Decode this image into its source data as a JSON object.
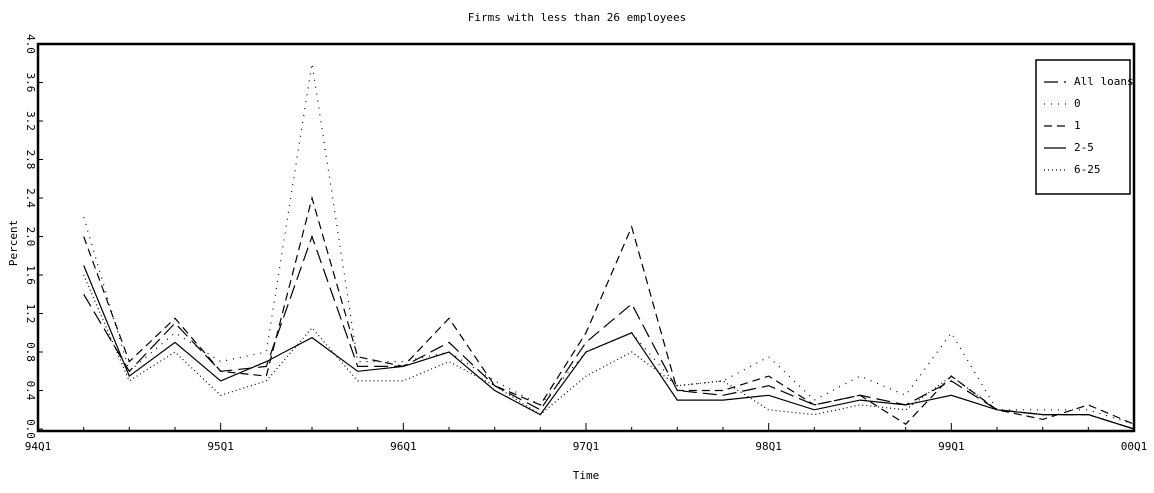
{
  "chart_data": {
    "type": "line",
    "title": "Firms with less than 26 employees",
    "x_label": "Time",
    "y_label": "Percent",
    "categories": [
      "94Q1",
      null,
      null,
      null,
      "95Q1",
      null,
      null,
      null,
      "96Q1",
      null,
      null,
      null,
      "97Q1",
      null,
      null,
      null,
      "98Q1",
      null,
      null,
      null,
      "99Q1",
      null,
      null,
      null,
      "00Q1"
    ],
    "ylim": [
      0,
      4
    ],
    "yticks": [
      {
        "value": 0,
        "label": "0.0"
      },
      0.4,
      0.8,
      1.2,
      1.6,
      {
        "value": 2,
        "label": "2.0"
      },
      2.4,
      2.8,
      3.2,
      3.6,
      {
        "value": 4,
        "label": "4.0"
      }
    ],
    "legend": "top-right",
    "series": [
      {
        "name": "All loans",
        "color": "#000000",
        "dash": "14,6",
        "values": [
          null,
          1.4,
          0.6,
          1.1,
          0.6,
          0.65,
          2.0,
          0.65,
          0.65,
          0.9,
          0.45,
          0.2,
          0.9,
          1.3,
          0.4,
          0.35,
          0.45,
          0.25,
          0.35,
          0.25,
          0.5,
          0.2,
          0.15,
          0.15,
          0.0
        ]
      },
      {
        "name": "0",
        "color": "#000000",
        "dash": "1,6",
        "values": [
          null,
          2.2,
          0.6,
          1.0,
          0.7,
          0.8,
          3.8,
          0.7,
          0.7,
          0.8,
          0.5,
          0.25,
          0.8,
          1.0,
          0.45,
          0.5,
          0.75,
          0.3,
          0.55,
          0.35,
          1.0,
          0.2,
          0.2,
          0.2,
          0.05
        ]
      },
      {
        "name": "1",
        "color": "#000000",
        "dash": "8,5",
        "values": [
          null,
          2.0,
          0.7,
          1.15,
          0.6,
          0.55,
          2.4,
          0.75,
          0.65,
          1.15,
          0.45,
          0.25,
          1.0,
          2.1,
          0.4,
          0.4,
          0.55,
          0.25,
          0.35,
          0.05,
          0.55,
          0.2,
          0.1,
          0.25,
          0.05
        ]
      },
      {
        "name": "2-5",
        "color": "#000000",
        "dash": "none",
        "values": [
          null,
          1.7,
          0.55,
          0.9,
          0.5,
          0.7,
          0.95,
          0.6,
          0.65,
          0.8,
          0.4,
          0.15,
          0.8,
          1.0,
          0.3,
          0.3,
          0.35,
          0.2,
          0.3,
          0.25,
          0.35,
          0.2,
          0.15,
          0.15,
          0.0
        ]
      },
      {
        "name": "6-25",
        "color": "#000000",
        "dash": "1,3",
        "values": [
          null,
          1.6,
          0.5,
          0.8,
          0.35,
          0.5,
          1.05,
          0.5,
          0.5,
          0.7,
          0.45,
          0.15,
          0.55,
          0.8,
          0.45,
          0.5,
          0.2,
          0.15,
          0.25,
          0.2,
          0.55,
          0.2,
          0.15,
          0.15,
          0.0
        ]
      }
    ]
  }
}
